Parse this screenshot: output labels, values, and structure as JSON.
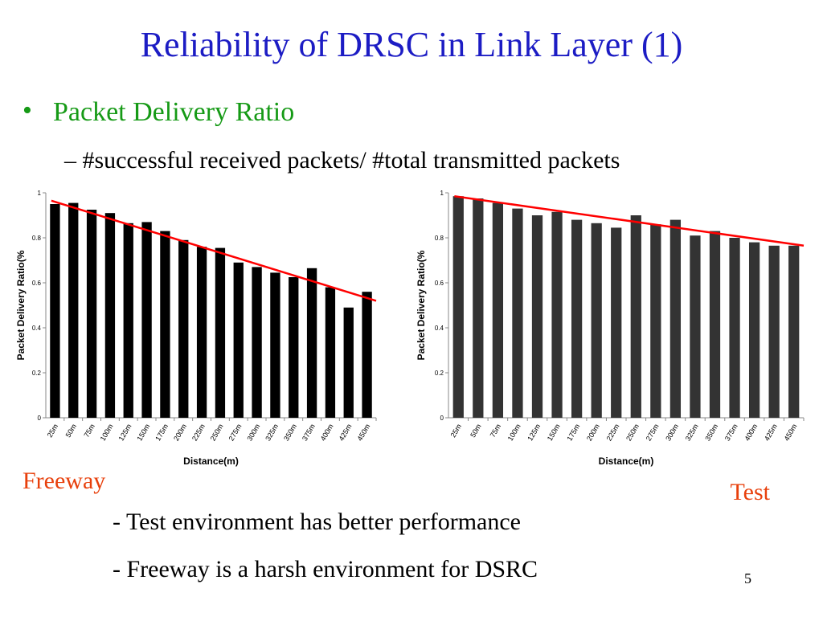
{
  "slide": {
    "title": "Reliability of DRSC in Link Layer (1)",
    "bullet": "Packet Delivery Ratio",
    "sub_bullet": "– #successful received packets/ #total transmitted packets",
    "notes": [
      "- Test environment has better performance",
      "- Freeway is a harsh environment for DSRC"
    ],
    "page_number": "5"
  },
  "chart_data": [
    {
      "type": "bar",
      "label": "Freeway",
      "y_label": "Packet Delivery Ratio(%",
      "x_label": "Distance(m)",
      "categories": [
        "25m",
        "50m",
        "75m",
        "100m",
        "125m",
        "150m",
        "175m",
        "200m",
        "225m",
        "250m",
        "275m",
        "300m",
        "325m",
        "350m",
        "375m",
        "400m",
        "425m",
        "450m"
      ],
      "values": [
        0.95,
        0.955,
        0.925,
        0.91,
        0.865,
        0.87,
        0.83,
        0.79,
        0.76,
        0.755,
        0.69,
        0.67,
        0.645,
        0.625,
        0.665,
        0.58,
        0.49,
        0.56
      ],
      "color": "#000000",
      "ylim": [
        0,
        1
      ],
      "yticks": [
        0,
        0.2,
        0.4,
        0.6,
        0.8,
        1
      ],
      "trendline": {
        "start": 0.965,
        "end": 0.52,
        "color": "#ff0000"
      }
    },
    {
      "type": "bar",
      "label": "Test",
      "y_label": "Packet Delivery Ratio(%",
      "x_label": "Distance(m)",
      "categories": [
        "25m",
        "50m",
        "75m",
        "100m",
        "125m",
        "150m",
        "175m",
        "200m",
        "225m",
        "250m",
        "275m",
        "300m",
        "325m",
        "350m",
        "375m",
        "400m",
        "425m",
        "450m"
      ],
      "values": [
        0.985,
        0.975,
        0.955,
        0.93,
        0.9,
        0.915,
        0.88,
        0.865,
        0.845,
        0.9,
        0.86,
        0.88,
        0.81,
        0.83,
        0.8,
        0.78,
        0.765,
        0.765
      ],
      "color": "#333333",
      "ylim": [
        0,
        1
      ],
      "yticks": [
        0,
        0.2,
        0.4,
        0.6,
        0.8,
        1
      ],
      "trendline": {
        "start": 0.985,
        "end": 0.765,
        "color": "#ff0000"
      }
    }
  ]
}
